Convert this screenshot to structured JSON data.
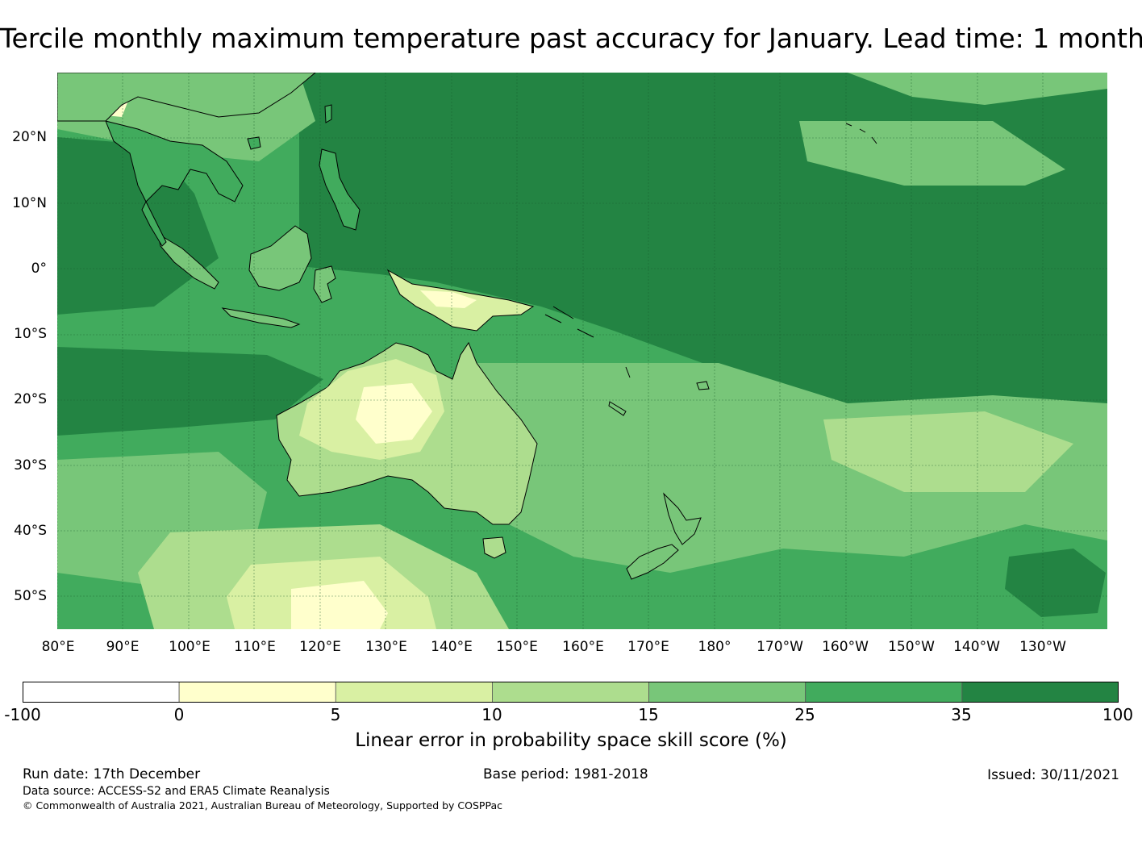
{
  "title": "Tercile monthly maximum temperature past accuracy for January. Lead time: 1 month",
  "map": {
    "region": "Western Pacific, Maritime Continent, Australia and New Zealand",
    "lat_labels": [
      "20°N",
      "10°N",
      "0°",
      "10°S",
      "20°S",
      "30°S",
      "40°S",
      "50°S"
    ],
    "lon_labels": [
      "80°E",
      "90°E",
      "100°E",
      "110°E",
      "120°E",
      "130°E",
      "140°E",
      "150°E",
      "160°E",
      "170°E",
      "180°",
      "170°W",
      "160°W",
      "150°W",
      "140°W",
      "130°W"
    ],
    "grid_lines": true
  },
  "colorbar": {
    "ticks": [
      "-100",
      "0",
      "5",
      "10",
      "15",
      "25",
      "35",
      "100"
    ],
    "colors": [
      "#ffffff",
      "#ffffcc",
      "#d9f0a3",
      "#addd8e",
      "#78c679",
      "#41ab5d",
      "#238443"
    ],
    "label": "Linear error in probability space skill score (%)"
  },
  "footer": {
    "run_date": "Run date: 17th December",
    "base_period": "Base period: 1981-2018",
    "issued": "Issued: 30/11/2021",
    "data_source": "Data source: ACCESS-S2 and ERA5 Climate Reanalysis",
    "copyright": "© Commonwealth of Australia 2021, Australian Bureau of Meteorology, Supported by COSPPac"
  }
}
